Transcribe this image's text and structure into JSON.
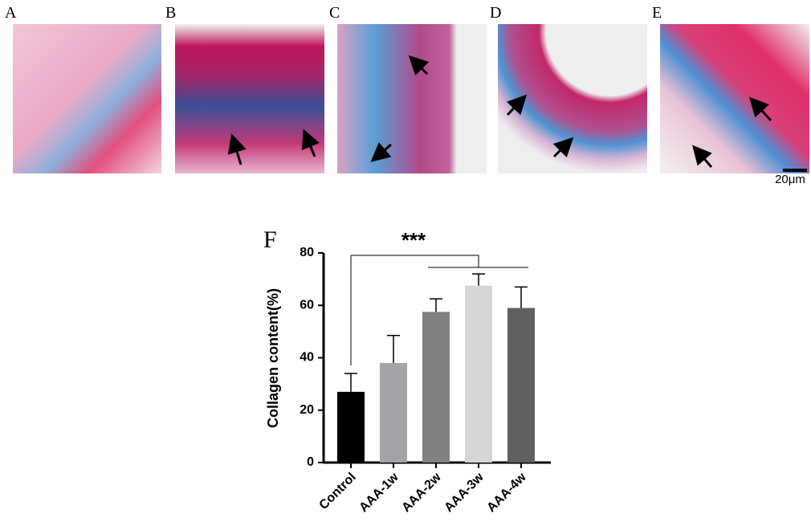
{
  "panels": [
    "A",
    "B",
    "C",
    "D",
    "E"
  ],
  "scale_bar_label": "20μm",
  "chart_data": {
    "type": "bar",
    "panel_label": "F",
    "ylabel": "Collagen content(%)",
    "categories": [
      "Control",
      "AAA-1w",
      "AAA-2w",
      "AAA-3w",
      "AAA-4w"
    ],
    "values": [
      27,
      38,
      57.5,
      67.5,
      59
    ],
    "errors": [
      7,
      10.5,
      5,
      4.5,
      8
    ],
    "colors": [
      "#000000",
      "#a4a4a8",
      "#808080",
      "#d6d6d6",
      "#606060"
    ],
    "ylim": [
      0,
      80
    ],
    "yticks": [
      0,
      20,
      40,
      60,
      80
    ],
    "annotation": "***"
  }
}
